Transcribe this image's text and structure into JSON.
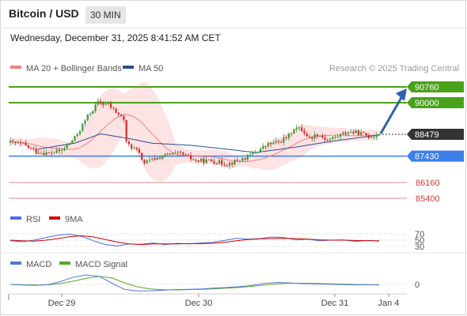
{
  "header": {
    "title": "Bitcoin / USD",
    "timeframe": "30 MIN",
    "datetime": "Wednesday, December 31, 2025 8:41:52 AM CET"
  },
  "legend": {
    "ma20": "MA 20 + Bollinger Bands",
    "ma50": "MA 50",
    "copyright": "Research © 2025 Trading Central",
    "rsi": "RSI",
    "ma9": "9MA",
    "macd": "MACD",
    "macd_signal": "MACD Signal"
  },
  "colors": {
    "ma20": "#f08080",
    "ma50": "#2a4f8f",
    "bands": "#fde0e0",
    "up": "#3c9a3c",
    "down": "#d62b2b",
    "target": "#4aa11a",
    "pivot": "#3d7ee8",
    "support": "#e05a5a",
    "last": "#333333",
    "arrow": "#2f63a8",
    "rsi": "#4a6fdc",
    "ma9": "#d40000",
    "macd": "#5577dd",
    "macd_signal": "#55aa22"
  },
  "chart_data": [
    {
      "type": "candlestick",
      "title": "Bitcoin / USD",
      "timeframe": "30 MIN",
      "x_tick_labels": [
        "Dec 29",
        "Dec 30",
        "Dec 31",
        "Jan 4"
      ],
      "price_levels": [
        {
          "value": 90760,
          "kind": "target"
        },
        {
          "value": 90000,
          "kind": "target"
        },
        {
          "value": 88479,
          "kind": "last"
        },
        {
          "value": 87430,
          "kind": "pivot"
        },
        {
          "value": 86160,
          "kind": "support"
        },
        {
          "value": 85400,
          "kind": "support"
        }
      ],
      "approx_close_path": [
        {
          "t": 0,
          "v": 88080
        },
        {
          "t": 5,
          "v": 87980
        },
        {
          "t": 10,
          "v": 87650
        },
        {
          "t": 15,
          "v": 87560
        },
        {
          "t": 20,
          "v": 87700
        },
        {
          "t": 25,
          "v": 88300
        },
        {
          "t": 30,
          "v": 89350
        },
        {
          "t": 34,
          "v": 90000
        },
        {
          "t": 38,
          "v": 89900
        },
        {
          "t": 41,
          "v": 89550
        },
        {
          "t": 44,
          "v": 89200
        },
        {
          "t": 45,
          "v": 88050
        },
        {
          "t": 49,
          "v": 87700
        },
        {
          "t": 52,
          "v": 87100
        },
        {
          "t": 56,
          "v": 87300
        },
        {
          "t": 61,
          "v": 87500
        },
        {
          "t": 66,
          "v": 87550
        },
        {
          "t": 72,
          "v": 87200
        },
        {
          "t": 78,
          "v": 87200
        },
        {
          "t": 84,
          "v": 87050
        },
        {
          "t": 88,
          "v": 87200
        },
        {
          "t": 92,
          "v": 87400
        },
        {
          "t": 96,
          "v": 87700
        },
        {
          "t": 100,
          "v": 88000
        },
        {
          "t": 104,
          "v": 88100
        },
        {
          "t": 108,
          "v": 88400
        },
        {
          "t": 110,
          "v": 88800
        },
        {
          "t": 113,
          "v": 88700
        },
        {
          "t": 116,
          "v": 88300
        },
        {
          "t": 119,
          "v": 88500
        },
        {
          "t": 123,
          "v": 88200
        },
        {
          "t": 127,
          "v": 88400
        },
        {
          "t": 131,
          "v": 88600
        },
        {
          "t": 135,
          "v": 88550
        },
        {
          "t": 139,
          "v": 88380
        },
        {
          "t": 143,
          "v": 88479
        }
      ],
      "approx_ma50_path": [
        {
          "t": 10,
          "v": 87750
        },
        {
          "t": 25,
          "v": 88050
        },
        {
          "t": 35,
          "v": 88500
        },
        {
          "t": 45,
          "v": 88300
        },
        {
          "t": 55,
          "v": 88050
        },
        {
          "t": 70,
          "v": 87950
        },
        {
          "t": 85,
          "v": 87750
        },
        {
          "t": 95,
          "v": 87600
        },
        {
          "t": 110,
          "v": 87850
        },
        {
          "t": 125,
          "v": 88150
        },
        {
          "t": 143,
          "v": 88450
        }
      ],
      "forecast": {
        "from": 88479,
        "to": 90760
      }
    },
    {
      "type": "line",
      "title": "RSI",
      "y_tick_labels": [
        "70",
        "50",
        "30"
      ],
      "series": [
        {
          "name": "RSI",
          "values": [
            48,
            45,
            50,
            58,
            66,
            69,
            62,
            48,
            36,
            32,
            38,
            37,
            41,
            36,
            40,
            38,
            41,
            43,
            49,
            56,
            53,
            55,
            60,
            58,
            51,
            53,
            48,
            50,
            51,
            46,
            49,
            47
          ]
        },
        {
          "name": "9MA",
          "values": [
            50,
            48,
            47,
            50,
            55,
            61,
            64,
            60,
            52,
            44,
            38,
            36,
            38,
            38,
            38,
            39,
            39,
            40,
            43,
            48,
            52,
            54,
            55,
            56,
            55,
            53,
            51,
            50,
            50,
            49,
            48,
            48
          ]
        }
      ]
    },
    {
      "type": "line",
      "title": "MACD",
      "y_tick_labels": [
        "0"
      ],
      "series": [
        {
          "name": "MACD",
          "values": [
            0,
            -40,
            -60,
            -10,
            200,
            480,
            620,
            520,
            80,
            -330,
            -430,
            -420,
            -380,
            -340,
            -320,
            -300,
            -240,
            -200,
            -150,
            -60,
            60,
            130,
            100,
            50,
            30,
            10,
            -10,
            -30,
            -20,
            -40
          ]
        },
        {
          "name": "MACD Signal",
          "values": [
            0,
            -20,
            -40,
            -30,
            60,
            220,
            400,
            520,
            420,
            100,
            -160,
            -300,
            -350,
            -360,
            -340,
            -320,
            -290,
            -250,
            -200,
            -130,
            -40,
            40,
            80,
            80,
            60,
            40,
            20,
            0,
            -10,
            -20
          ]
        }
      ]
    }
  ]
}
